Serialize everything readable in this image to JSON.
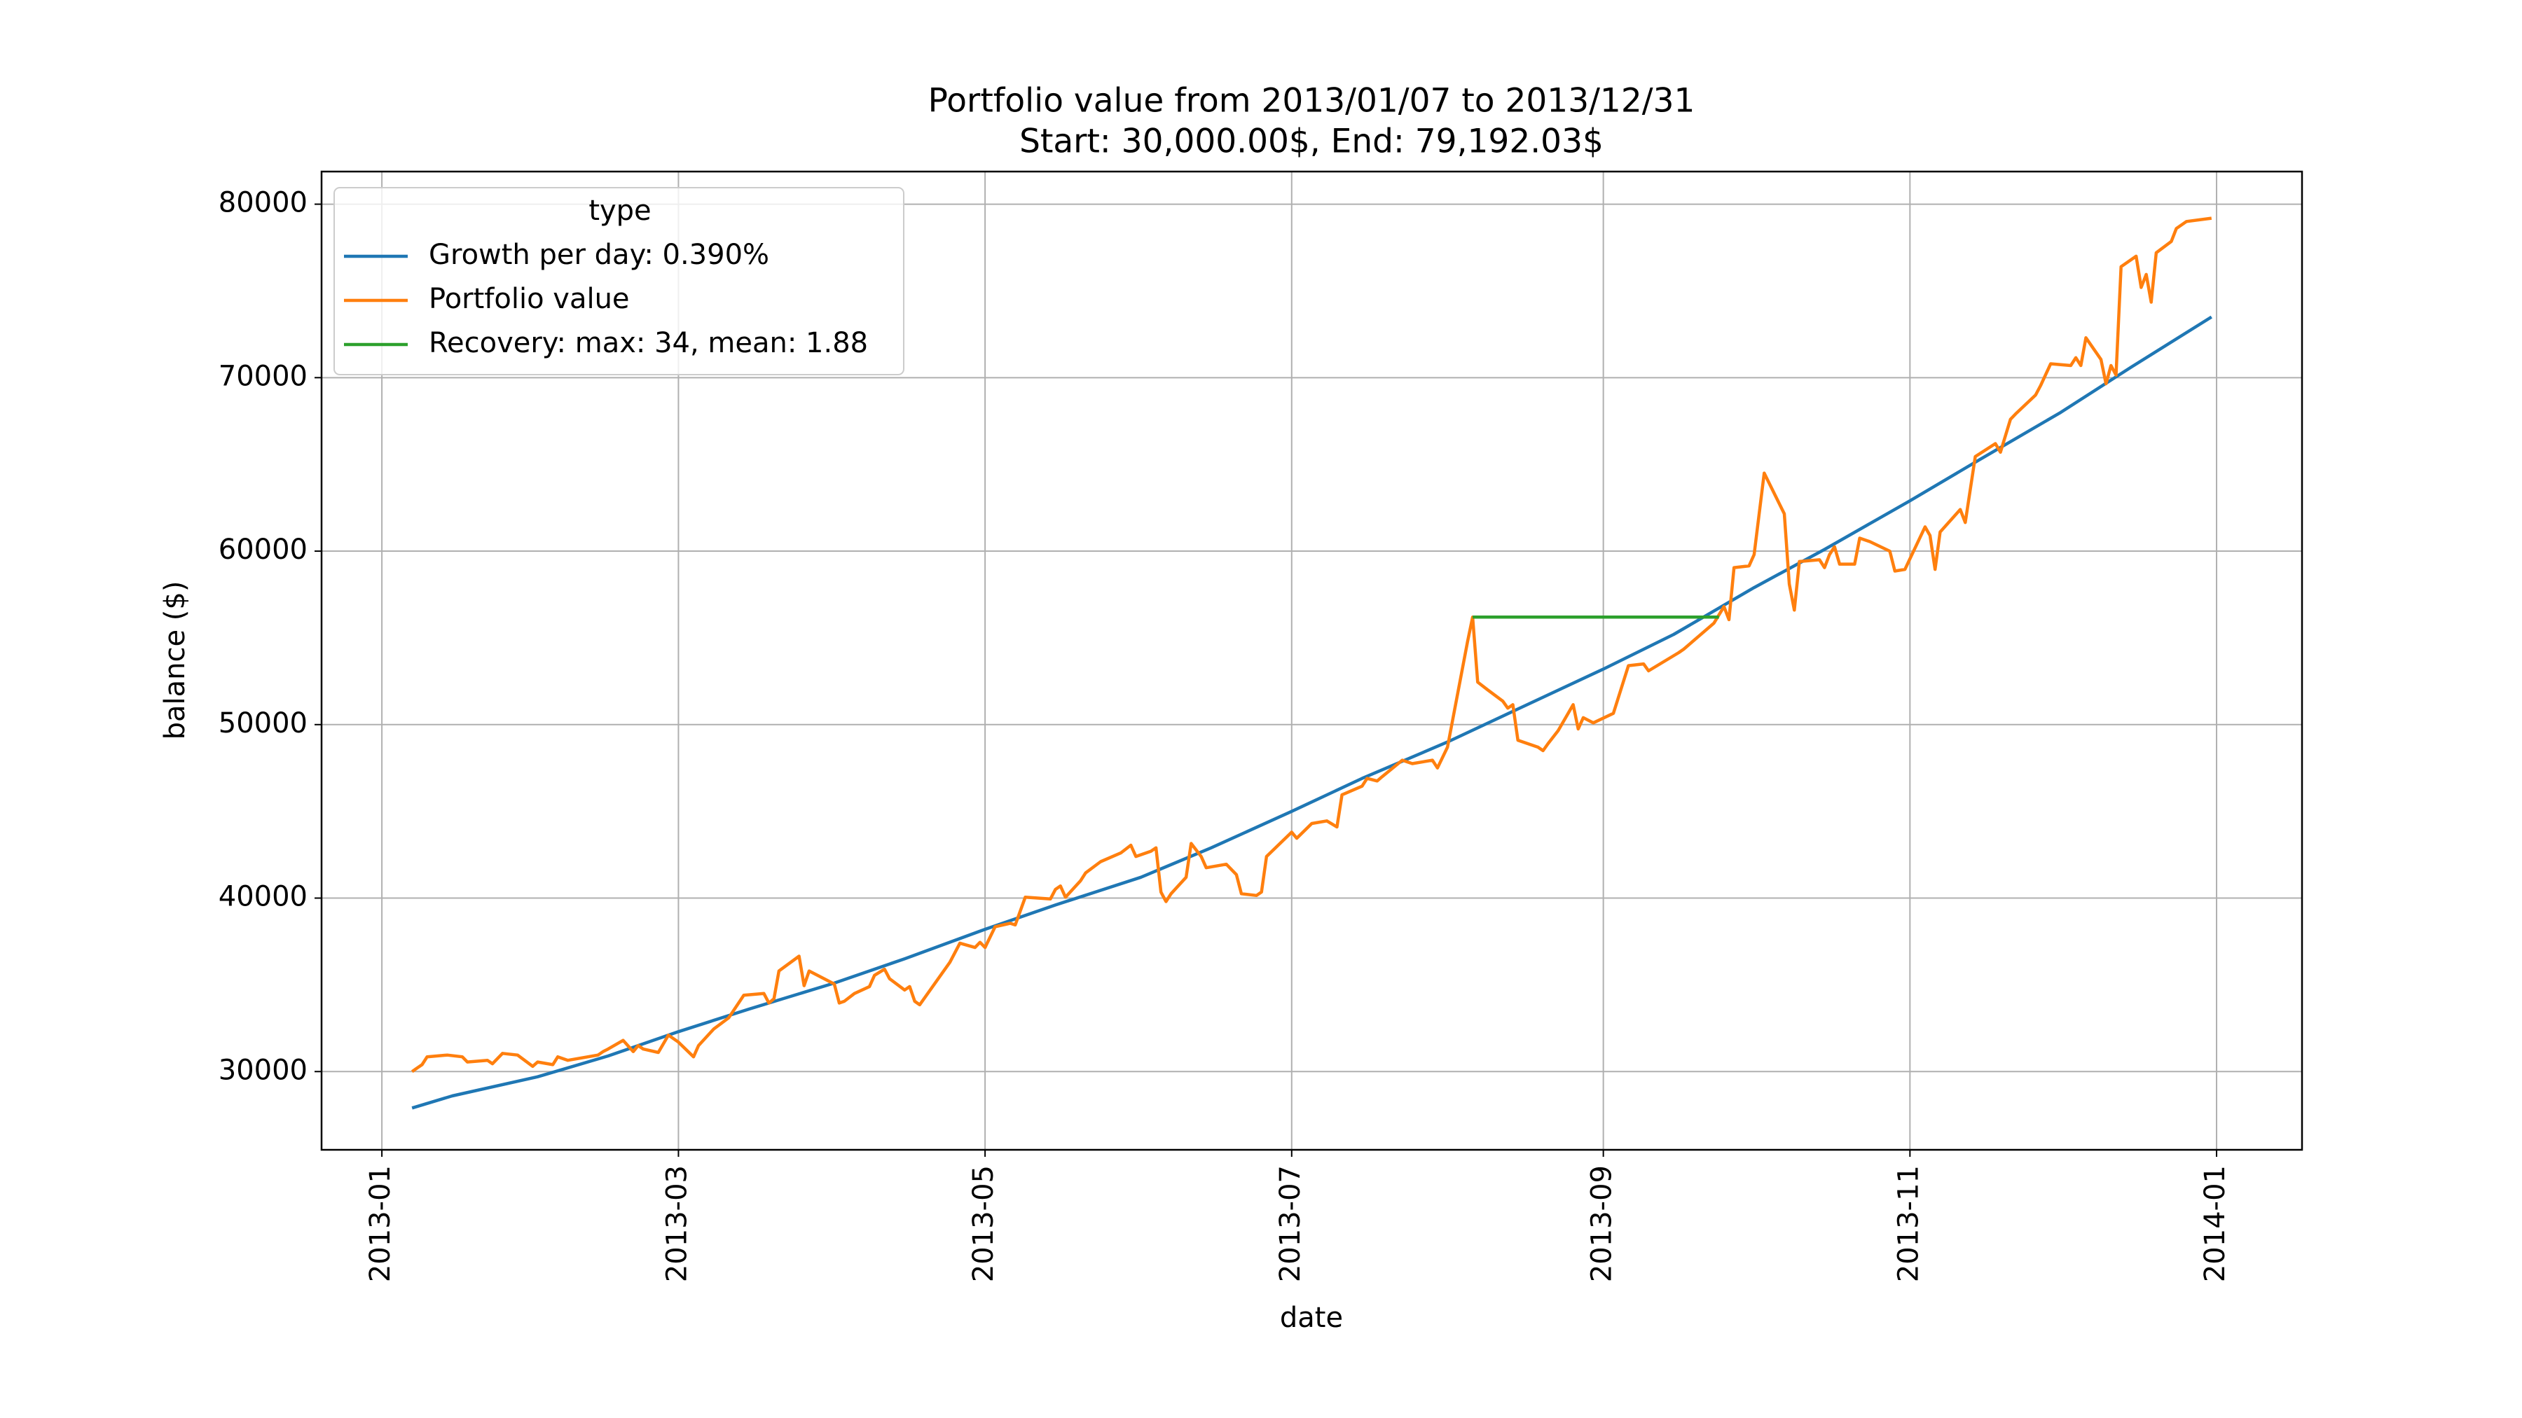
{
  "chart_data": {
    "type": "line",
    "title": "Portfolio value from 2013/01/07 to 2013/12/31",
    "subtitle": "Start: 30,000.00$, End: 79,192.03$",
    "xlabel": "date",
    "ylabel": "balance ($)",
    "legend_title": "type",
    "legend": "upper left",
    "grid": true,
    "xlim": [
      "2012-12-20",
      "2014-01-18"
    ],
    "xticks": [
      {
        "value": "2013-01-01",
        "label": "2013-01"
      },
      {
        "value": "2013-03-01",
        "label": "2013-03"
      },
      {
        "value": "2013-05-01",
        "label": "2013-05"
      },
      {
        "value": "2013-07-01",
        "label": "2013-07"
      },
      {
        "value": "2013-09-01",
        "label": "2013-09"
      },
      {
        "value": "2013-11-01",
        "label": "2013-11"
      },
      {
        "value": "2014-01-01",
        "label": "2014-01"
      }
    ],
    "ylim": [
      25490,
      81880
    ],
    "yticks": [
      30000,
      40000,
      50000,
      60000,
      70000,
      80000
    ],
    "series": [
      {
        "name": "Growth per day: 0.390%",
        "color": "#1f77b4",
        "x": [
          "2013-01-07",
          "2013-01-15",
          "2013-02-01",
          "2013-02-15",
          "2013-03-01",
          "2013-03-15",
          "2013-04-01",
          "2013-04-15",
          "2013-05-01",
          "2013-05-15",
          "2013-06-01",
          "2013-06-15",
          "2013-07-01",
          "2013-07-15",
          "2013-08-01",
          "2013-08-15",
          "2013-09-01",
          "2013-09-15",
          "2013-10-01",
          "2013-10-15",
          "2013-11-01",
          "2013-11-15",
          "2013-12-01",
          "2013-12-15",
          "2013-12-31"
        ],
        "values": [
          27900,
          28600,
          29700,
          30900,
          32300,
          33600,
          35100,
          36500,
          38200,
          39600,
          41200,
          42900,
          45000,
          46900,
          49000,
          50900,
          53200,
          55200,
          57900,
          60100,
          62900,
          65300,
          68000,
          70600,
          73500
        ]
      },
      {
        "name": "Portfolio value",
        "color": "#ff7f0e",
        "x": [
          "2013-01-07",
          "2013-01-08",
          "2013-01-09",
          "2013-01-10",
          "2013-01-14",
          "2013-01-17",
          "2013-01-18",
          "2013-01-22",
          "2013-01-23",
          "2013-01-25",
          "2013-01-28",
          "2013-01-31",
          "2013-02-01",
          "2013-02-04",
          "2013-02-05",
          "2013-02-07",
          "2013-02-11",
          "2013-02-13",
          "2013-02-14",
          "2013-02-15",
          "2013-02-18",
          "2013-02-20",
          "2013-02-21",
          "2013-02-22",
          "2013-02-25",
          "2013-02-27",
          "2013-03-01",
          "2013-03-04",
          "2013-03-05",
          "2013-03-08",
          "2013-03-11",
          "2013-03-14",
          "2013-03-18",
          "2013-03-19",
          "2013-03-20",
          "2013-03-21",
          "2013-03-25",
          "2013-03-26",
          "2013-03-27",
          "2013-04-01",
          "2013-04-02",
          "2013-04-03",
          "2013-04-05",
          "2013-04-08",
          "2013-04-09",
          "2013-04-11",
          "2013-04-12",
          "2013-04-15",
          "2013-04-16",
          "2013-04-17",
          "2013-04-18",
          "2013-04-24",
          "2013-04-26",
          "2013-04-29",
          "2013-04-30",
          "2013-05-01",
          "2013-05-03",
          "2013-05-06",
          "2013-05-07",
          "2013-05-09",
          "2013-05-14",
          "2013-05-15",
          "2013-05-16",
          "2013-05-17",
          "2013-05-20",
          "2013-05-21",
          "2013-05-24",
          "2013-05-28",
          "2013-05-30",
          "2013-05-31",
          "2013-06-03",
          "2013-06-04",
          "2013-06-05",
          "2013-06-06",
          "2013-06-07",
          "2013-06-10",
          "2013-06-11",
          "2013-06-13",
          "2013-06-14",
          "2013-06-18",
          "2013-06-20",
          "2013-06-21",
          "2013-06-24",
          "2013-06-25",
          "2013-06-26",
          "2013-07-01",
          "2013-07-02",
          "2013-07-05",
          "2013-07-08",
          "2013-07-10",
          "2013-07-11",
          "2013-07-15",
          "2013-07-16",
          "2013-07-18",
          "2013-07-19",
          "2013-07-23",
          "2013-07-25",
          "2013-07-29",
          "2013-07-30",
          "2013-08-01",
          "2013-08-05",
          "2013-08-06",
          "2013-08-07",
          "2013-08-09",
          "2013-08-12",
          "2013-08-13",
          "2013-08-14",
          "2013-08-15",
          "2013-08-19",
          "2013-08-20",
          "2013-08-21",
          "2013-08-23",
          "2013-08-26",
          "2013-08-27",
          "2013-08-28",
          "2013-08-30",
          "2013-09-03",
          "2013-09-06",
          "2013-09-09",
          "2013-09-10",
          "2013-09-16",
          "2013-09-17",
          "2013-09-20",
          "2013-09-23",
          "2013-09-25",
          "2013-09-26",
          "2013-09-27",
          "2013-09-30",
          "2013-10-01",
          "2013-10-03",
          "2013-10-07",
          "2013-10-08",
          "2013-10-09",
          "2013-10-10",
          "2013-10-14",
          "2013-10-15",
          "2013-10-16",
          "2013-10-17",
          "2013-10-18",
          "2013-10-21",
          "2013-10-22",
          "2013-10-24",
          "2013-10-28",
          "2013-10-29",
          "2013-10-31",
          "2013-11-04",
          "2013-11-05",
          "2013-11-06",
          "2013-11-07",
          "2013-11-11",
          "2013-11-12",
          "2013-11-14",
          "2013-11-18",
          "2013-11-19",
          "2013-11-21",
          "2013-11-22",
          "2013-11-26",
          "2013-11-27",
          "2013-11-29",
          "2013-12-03",
          "2013-12-04",
          "2013-12-05",
          "2013-12-06",
          "2013-12-09",
          "2013-12-10",
          "2013-12-11",
          "2013-12-12",
          "2013-12-13",
          "2013-12-16",
          "2013-12-17",
          "2013-12-18",
          "2013-12-19",
          "2013-12-20",
          "2013-12-23",
          "2013-12-24",
          "2013-12-26",
          "2013-12-31"
        ],
        "values": [
          30000,
          30200,
          30400,
          30850,
          30950,
          30850,
          30550,
          30650,
          30450,
          31050,
          30950,
          30300,
          30550,
          30400,
          30850,
          30650,
          30850,
          30950,
          31150,
          31300,
          31800,
          31150,
          31500,
          31300,
          31100,
          32100,
          31700,
          30850,
          31500,
          32450,
          33100,
          34400,
          34500,
          33950,
          34200,
          35800,
          36650,
          34950,
          35800,
          35050,
          33950,
          34050,
          34500,
          34900,
          35550,
          35900,
          35350,
          34700,
          34900,
          34050,
          33850,
          36300,
          37400,
          37150,
          37450,
          37150,
          38350,
          38550,
          38450,
          40050,
          39950,
          40500,
          40700,
          40050,
          41000,
          41450,
          42100,
          42600,
          43050,
          42400,
          42700,
          42900,
          40350,
          39800,
          40250,
          41200,
          43150,
          42400,
          41750,
          41950,
          41350,
          40250,
          40150,
          40350,
          42400,
          43800,
          43450,
          44300,
          44450,
          44100,
          45950,
          46450,
          46900,
          46750,
          47000,
          47950,
          47750,
          47950,
          47500,
          48700,
          54800,
          56200,
          52450,
          52000,
          51350,
          50950,
          51150,
          49100,
          48700,
          48500,
          48900,
          49650,
          51150,
          49750,
          50400,
          50100,
          50650,
          53400,
          53500,
          53100,
          54150,
          54350,
          55100,
          55850,
          56800,
          56050,
          59050,
          59150,
          59800,
          64500,
          62150,
          58100,
          56600,
          59400,
          59500,
          59050,
          59800,
          60250,
          59250,
          59250,
          60750,
          60550,
          60000,
          58850,
          58950,
          61400,
          60900,
          58950,
          61100,
          62400,
          61650,
          65450,
          66200,
          65700,
          67600,
          67900,
          69000,
          69550,
          70800,
          70700,
          71150,
          70700,
          72300,
          71050,
          69650,
          70700,
          70150,
          76400,
          77000,
          75200,
          75950,
          74350,
          77200,
          77850,
          78600,
          79000,
          79192.03
        ]
      },
      {
        "name": "Recovery: max: 34, mean: 1.88",
        "color": "#2ca02c",
        "x": [
          "2013-08-06",
          "2013-09-24"
        ],
        "values": [
          56200,
          56200
        ]
      }
    ]
  }
}
